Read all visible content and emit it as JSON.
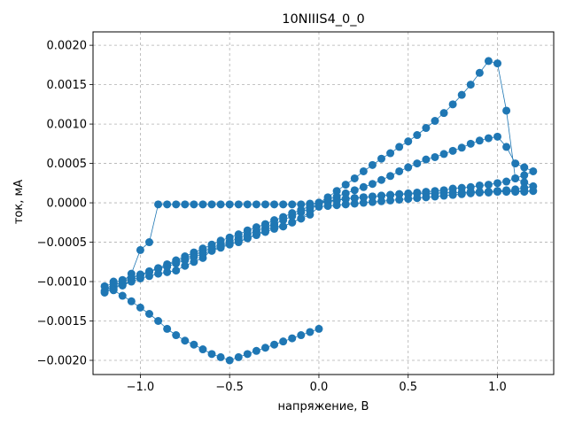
{
  "chart_data": {
    "type": "scatter",
    "title": "10NIIIS4_0_0",
    "xlabel": "напряжение, В",
    "ylabel": "ток, мА",
    "xlim": [
      -1.265,
      1.315
    ],
    "ylim": [
      -0.00218,
      0.00217
    ],
    "grid": true,
    "grid_style": "dashed",
    "x_ticks": [
      {
        "value": -1.0,
        "label": "−1.0"
      },
      {
        "value": -0.5,
        "label": "−0.5"
      },
      {
        "value": 0.0,
        "label": "0.0"
      },
      {
        "value": 0.5,
        "label": "0.5"
      },
      {
        "value": 1.0,
        "label": "1.0"
      }
    ],
    "y_ticks": [
      {
        "value": -0.002,
        "label": "−0.0020"
      },
      {
        "value": -0.0015,
        "label": "−0.0015"
      },
      {
        "value": -0.001,
        "label": "−0.0010"
      },
      {
        "value": -0.0005,
        "label": "−0.0005"
      },
      {
        "value": 0.0,
        "label": "0.0000"
      },
      {
        "value": 0.0005,
        "label": "0.0005"
      },
      {
        "value": 0.001,
        "label": "0.0010"
      },
      {
        "value": 0.0015,
        "label": "0.0015"
      },
      {
        "value": 0.002,
        "label": "0.0020"
      }
    ],
    "series": [
      {
        "color": "#1f77b4",
        "x": [
          0.0,
          0.05,
          0.1,
          0.15,
          0.2,
          0.25,
          0.3,
          0.35,
          0.4,
          0.45,
          0.5,
          0.55,
          0.6,
          0.65,
          0.7,
          0.75,
          0.8,
          0.85,
          0.9,
          0.95,
          1.0,
          1.05,
          1.1,
          1.15,
          1.2,
          1.15,
          1.1,
          1.05,
          1.0,
          0.95,
          0.9,
          0.85,
          0.8,
          0.75,
          0.7,
          0.65,
          0.6,
          0.55,
          0.5,
          0.45,
          0.4,
          0.35,
          0.3,
          0.25,
          0.2,
          0.15,
          0.1,
          0.05,
          0.0,
          -0.05,
          -0.1,
          -0.15,
          -0.2,
          -0.25,
          -0.3,
          -0.35,
          -0.4,
          -0.45,
          -0.5,
          -0.55,
          -0.6,
          -0.65,
          -0.7,
          -0.75,
          -0.8,
          -0.85,
          -0.9,
          -0.95,
          -1.0,
          -1.05,
          -1.1,
          -1.15,
          -1.2,
          -1.15,
          -1.1,
          -1.05,
          -1.0,
          -0.95,
          -0.9,
          -0.85,
          -0.8,
          -0.75,
          -0.7,
          -0.65,
          -0.6,
          -0.55,
          -0.5,
          -0.45,
          -0.4,
          -0.35,
          -0.3,
          -0.25,
          -0.2,
          -0.15,
          -0.1,
          -0.05,
          0.0
        ],
        "y": [
          0.0,
          1e-05,
          3e-05,
          5e-05,
          6e-05,
          7e-05,
          8e-05,
          9e-05,
          0.0001,
          0.00011,
          0.00011,
          0.00012,
          0.00012,
          0.00012,
          0.00013,
          0.00013,
          0.00013,
          0.00013,
          0.00013,
          0.00013,
          0.00014,
          0.00014,
          0.00014,
          0.00014,
          0.00015,
          0.00015,
          0.00015,
          0.00015,
          0.00015,
          0.00014,
          0.00014,
          0.00014,
          0.00013,
          0.00013,
          0.00013,
          0.00012,
          0.00012,
          0.00012,
          0.00011,
          0.00011,
          0.0001,
          9e-05,
          8e-05,
          7e-05,
          6e-05,
          5e-05,
          4e-05,
          2e-05,
          0.0,
          -1e-05,
          -2e-05,
          -2e-05,
          -2e-05,
          -2e-05,
          -2e-05,
          -2e-05,
          -2e-05,
          -2e-05,
          -2e-05,
          -2e-05,
          -2e-05,
          -2e-05,
          -2e-05,
          -2e-05,
          -2e-05,
          -2e-05,
          -2e-05,
          -0.0005,
          -0.0006,
          -0.0009,
          -0.001,
          -0.0011,
          -0.00112,
          -0.00106,
          -0.001,
          -0.00096,
          -0.00091,
          -0.00087,
          -0.00083,
          -0.00079,
          -0.00075,
          -0.00071,
          -0.00066,
          -0.00062,
          -0.00057,
          -0.00053,
          -0.00049,
          -0.00045,
          -0.0004,
          -0.00036,
          -0.00031,
          -0.00027,
          -0.00022,
          -0.00017,
          -0.00012,
          -7e-05,
          -1e-05
        ]
      },
      {
        "color": "#1f77b4",
        "x": [
          0.0,
          0.05,
          0.1,
          0.15,
          0.2,
          0.25,
          0.3,
          0.35,
          0.4,
          0.45,
          0.5,
          0.55,
          0.6,
          0.65,
          0.7,
          0.75,
          0.8,
          0.85,
          0.9,
          0.95,
          1.0,
          1.05,
          1.1,
          1.15,
          1.2,
          1.15,
          1.1,
          1.05,
          1.0,
          0.95,
          0.9,
          0.85,
          0.8,
          0.75,
          0.7,
          0.65,
          0.6,
          0.55,
          0.5,
          0.45,
          0.4,
          0.35,
          0.3,
          0.25,
          0.2,
          0.15,
          0.1,
          0.05,
          0.0,
          -0.05,
          -0.1,
          -0.15,
          -0.2,
          -0.25,
          -0.3,
          -0.35,
          -0.4,
          -0.45,
          -0.5,
          -0.55,
          -0.6,
          -0.65,
          -0.7,
          -0.75,
          -0.8,
          -0.85,
          -0.9,
          -0.95,
          -1.0,
          -1.05,
          -1.1,
          -1.15,
          -1.2,
          -1.15,
          -1.1,
          -1.05,
          -1.0,
          -0.95,
          -0.9,
          -0.85,
          -0.8,
          -0.75,
          -0.7,
          -0.65,
          -0.6,
          -0.55,
          -0.5,
          -0.45,
          -0.4,
          -0.35,
          -0.3,
          -0.25,
          -0.2,
          -0.15,
          -0.1,
          -0.05,
          0.0
        ],
        "y": [
          0.0,
          4e-05,
          8e-05,
          0.00012,
          0.00016,
          0.0002,
          0.00024,
          0.00029,
          0.00034,
          0.0004,
          0.00045,
          0.0005,
          0.00055,
          0.00058,
          0.00062,
          0.00066,
          0.0007,
          0.00075,
          0.00079,
          0.00082,
          0.00084,
          0.00071,
          0.0005,
          0.00045,
          0.0004,
          0.00035,
          0.00031,
          0.00027,
          0.00025,
          0.00023,
          0.00022,
          0.0002,
          0.00019,
          0.00018,
          0.00016,
          0.00015,
          0.00014,
          0.00013,
          0.00012,
          0.00011,
          0.0001,
          9e-05,
          8e-05,
          7e-05,
          6e-05,
          5e-05,
          3e-05,
          2e-05,
          0.0,
          -0.0001,
          -0.0002,
          -0.00025,
          -0.0003,
          -0.0003,
          -0.00035,
          -0.0004,
          -0.00045,
          -0.0005,
          -0.00052,
          -0.00055,
          -0.0006,
          -0.0007,
          -0.00075,
          -0.0008,
          -0.00086,
          -0.00088,
          -0.0009,
          -0.00093,
          -0.00096,
          -0.001,
          -0.00105,
          -0.001,
          -0.00114,
          -0.00109,
          -0.00104,
          -0.00099,
          -0.00093,
          -0.00088,
          -0.00083,
          -0.00078,
          -0.00073,
          -0.00068,
          -0.00063,
          -0.00058,
          -0.00053,
          -0.00048,
          -0.00044,
          -0.0004,
          -0.00035,
          -0.00031,
          -0.00027,
          -0.00022,
          -0.00018,
          -0.00013,
          -9e-05,
          -4e-05,
          0.0
        ]
      },
      {
        "color": "#1f77b4",
        "x": [
          0.0,
          0.05,
          0.1,
          0.15,
          0.2,
          0.25,
          0.3,
          0.35,
          0.4,
          0.45,
          0.5,
          0.55,
          0.6,
          0.65,
          0.7,
          0.75,
          0.8,
          0.85,
          0.9,
          0.95,
          1.0,
          1.05,
          1.1,
          1.15,
          1.2,
          1.15,
          1.1,
          1.05,
          1.0,
          0.95,
          0.9,
          0.85,
          0.8,
          0.75,
          0.7,
          0.65,
          0.6,
          0.55,
          0.5,
          0.45,
          0.4,
          0.35,
          0.3,
          0.25,
          0.2,
          0.15,
          0.1,
          0.05,
          0.0,
          -0.05,
          -0.1,
          -0.15,
          -0.2,
          -0.25,
          -0.3,
          -0.35,
          -0.4,
          -0.45,
          -0.5,
          -0.55,
          -0.6,
          -0.65,
          -0.7,
          -0.75,
          -0.8,
          -0.85,
          -0.9,
          -0.95,
          -1.0,
          -1.05,
          -1.1,
          -1.15,
          -1.2,
          -1.15,
          -1.1,
          -1.05,
          -1.0,
          -0.95,
          -0.9,
          -0.85,
          -0.8,
          -0.75,
          -0.7,
          -0.65,
          -0.6,
          -0.55,
          -0.5,
          -0.45,
          -0.4,
          -0.35,
          -0.3,
          -0.25,
          -0.2,
          -0.15,
          -0.1,
          -0.05,
          0.0
        ],
        "y": [
          0.0,
          7e-05,
          0.00015,
          0.00023,
          0.00031,
          0.0004,
          0.00048,
          0.00056,
          0.00063,
          0.00071,
          0.00078,
          0.00086,
          0.00095,
          0.00104,
          0.00114,
          0.00125,
          0.00137,
          0.0015,
          0.00165,
          0.0018,
          0.00177,
          0.00117,
          0.00031,
          0.00026,
          0.00021,
          0.00019,
          0.00017,
          0.00016,
          0.00015,
          0.00014,
          0.00013,
          0.00012,
          0.00011,
          0.0001,
          9e-05,
          8e-05,
          7e-05,
          6e-05,
          5e-05,
          4e-05,
          3e-05,
          2e-05,
          1e-05,
          0.0,
          -1e-05,
          -2e-05,
          -3e-05,
          -4e-05,
          -5e-05,
          -0.00015,
          -0.0002,
          -0.00025,
          -0.0003,
          -0.00033,
          -0.00037,
          -0.00041,
          -0.00045,
          -0.00049,
          -0.00053,
          -0.00057,
          -0.00061,
          -0.00065,
          -0.00069,
          -0.00073,
          -0.00077,
          -0.00081,
          -0.00084,
          -0.00087,
          -0.00091,
          -0.00095,
          -0.00098,
          -0.00102,
          -0.00106,
          -0.00111,
          -0.00118,
          -0.00125,
          -0.00133,
          -0.00141,
          -0.0015,
          -0.0016,
          -0.00168,
          -0.00175,
          -0.0018,
          -0.00186,
          -0.00192,
          -0.00196,
          -0.002,
          -0.00196,
          -0.00192,
          -0.00188,
          -0.00184,
          -0.0018,
          -0.00176,
          -0.00172,
          -0.00168,
          -0.00164,
          -0.0016
        ]
      }
    ]
  }
}
